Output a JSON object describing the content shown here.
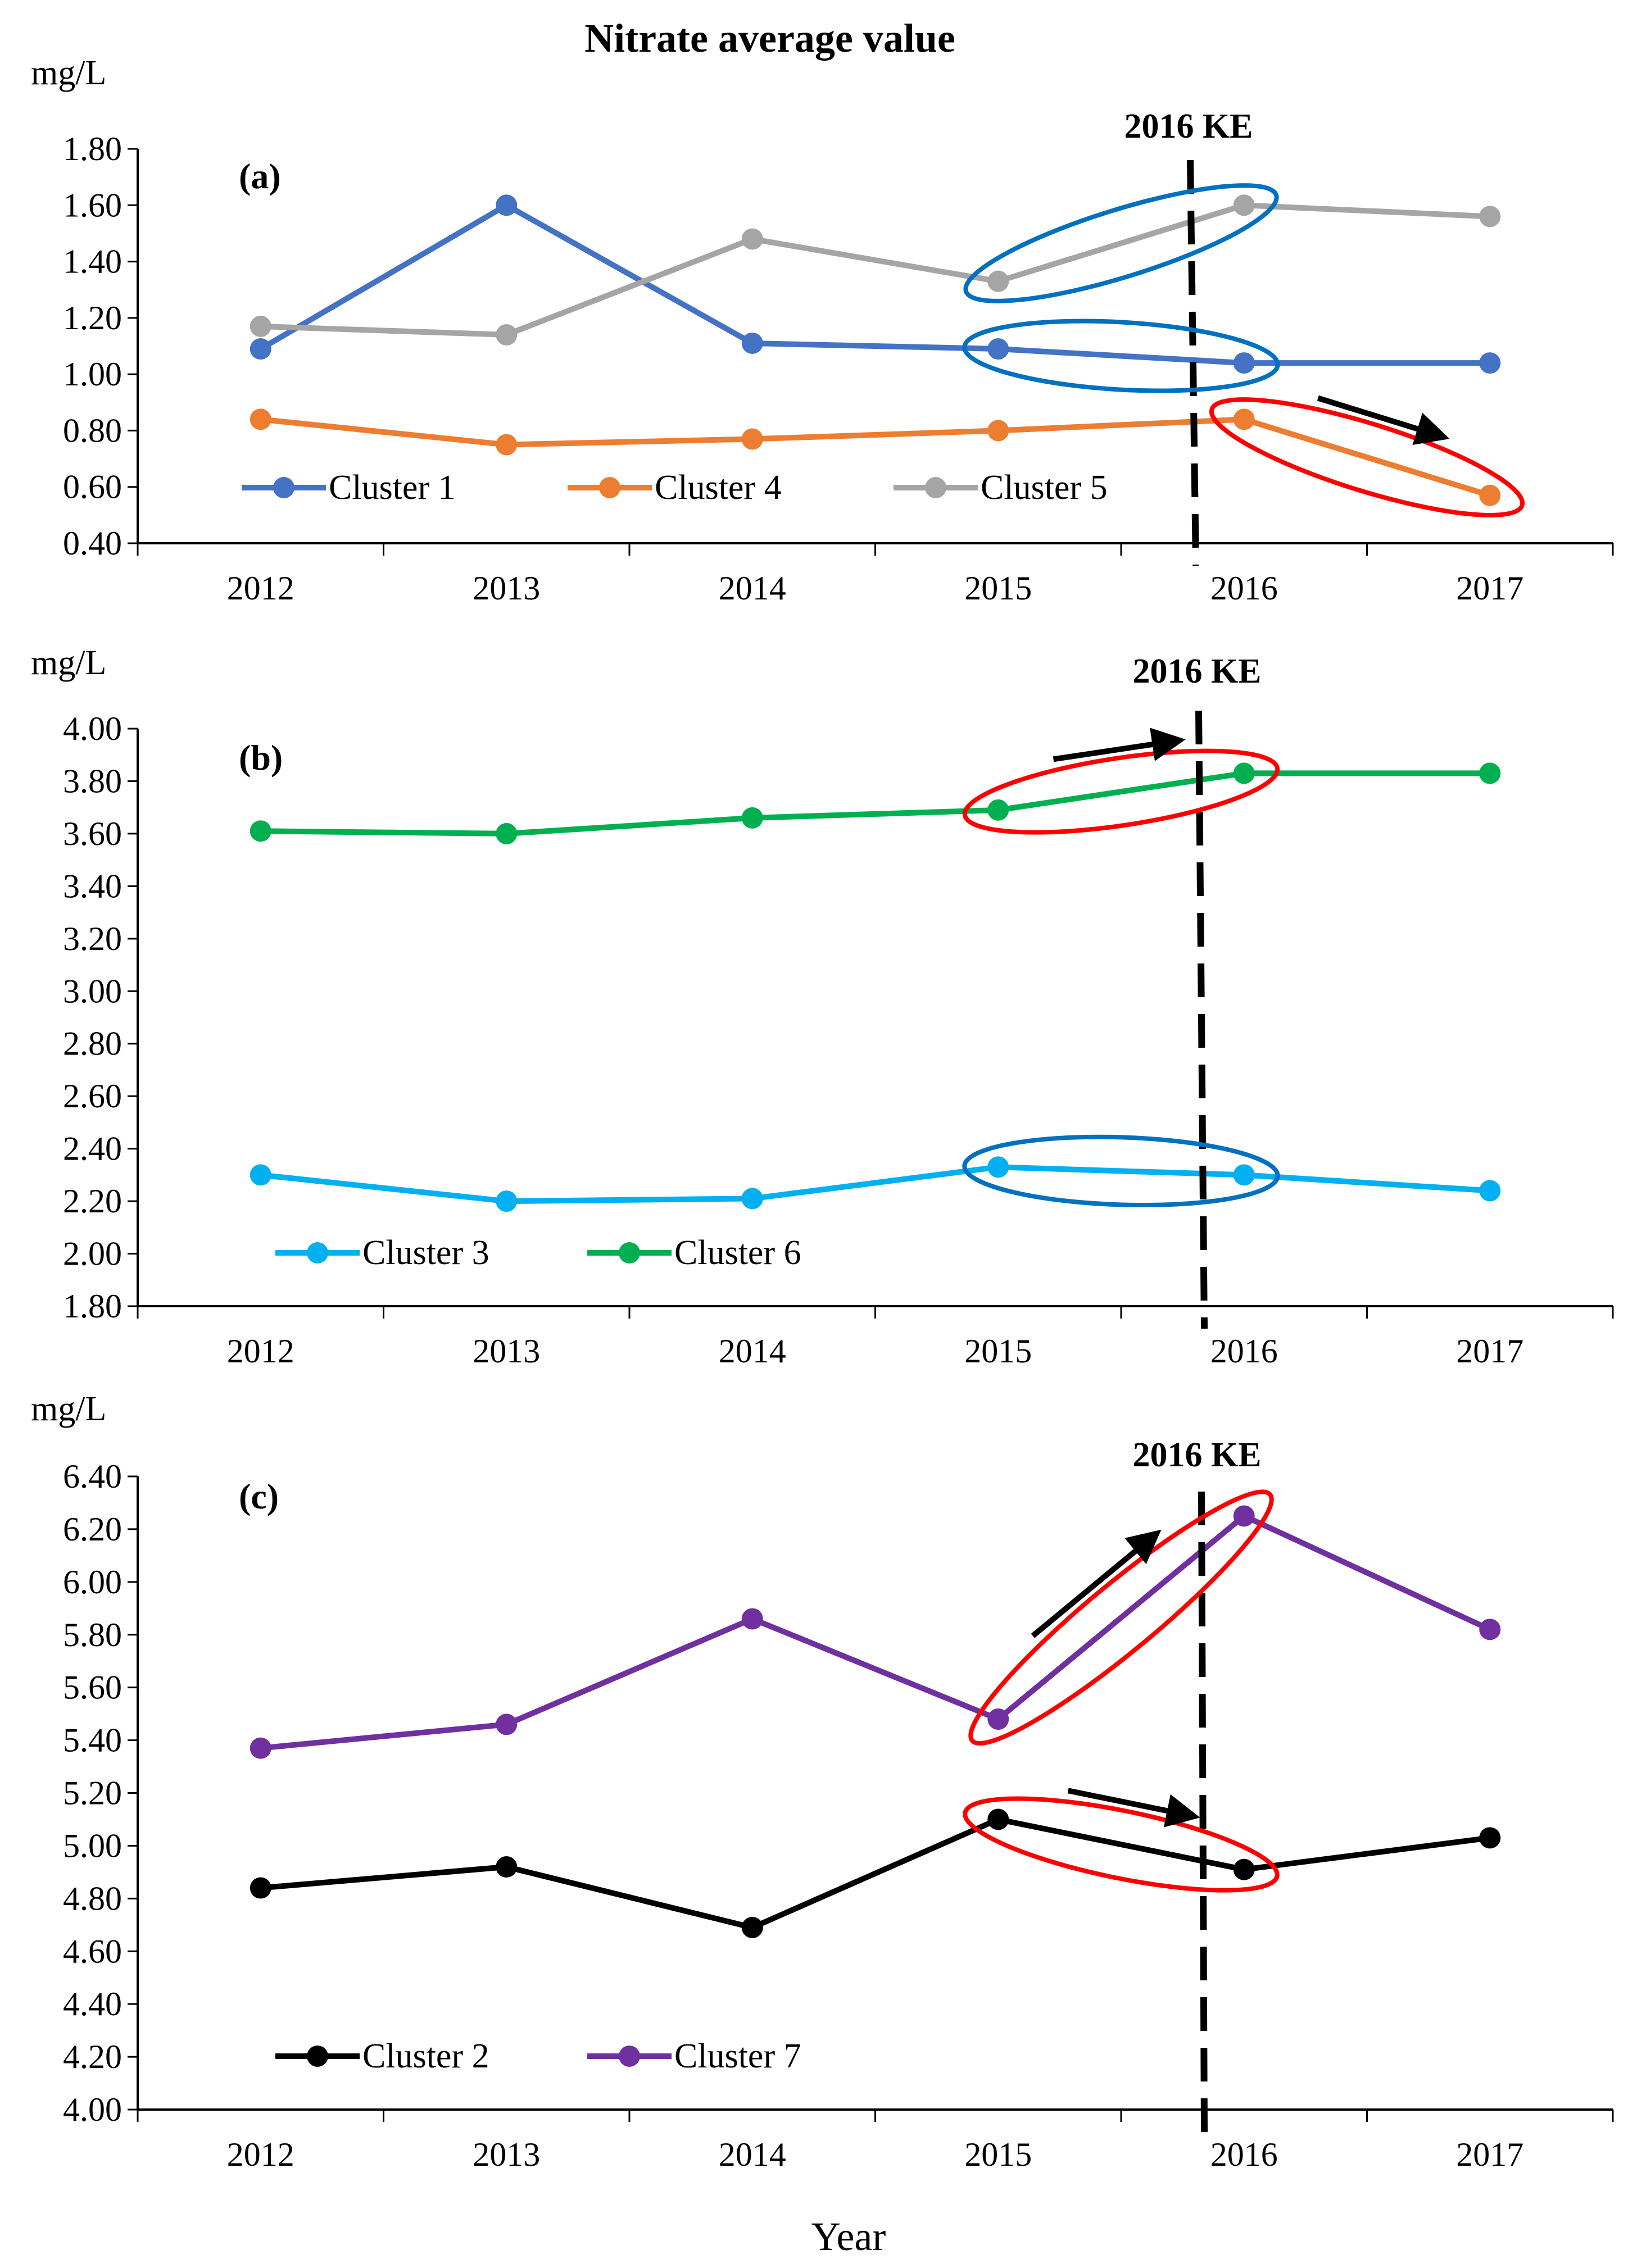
{
  "chart_data": [
    {
      "type": "line",
      "panel": "(a)",
      "title": "Nitrate average value",
      "ylabel": "mg/L",
      "xlabel": "",
      "categories": [
        "2012",
        "2013",
        "2014",
        "2015",
        "2016",
        "2017"
      ],
      "ylim": [
        0.4,
        1.8
      ],
      "ystep": 0.2,
      "ytick_labels": [
        "0.40",
        "0.60",
        "0.80",
        "1.00",
        "1.20",
        "1.40",
        "1.60",
        "1.80"
      ],
      "marker_label": "2016 KE",
      "legend_position": "bottom-left",
      "series": [
        {
          "name": "Cluster 1",
          "color": "#4472C4",
          "values": [
            1.09,
            1.6,
            1.11,
            1.09,
            1.04,
            1.04
          ]
        },
        {
          "name": "Cluster 4",
          "color": "#ED7D31",
          "values": [
            0.84,
            0.75,
            0.77,
            0.8,
            0.84,
            0.57
          ]
        },
        {
          "name": "Cluster 5",
          "color": "#A5A5A5",
          "values": [
            1.17,
            1.14,
            1.48,
            1.33,
            1.6,
            1.56
          ]
        }
      ]
    },
    {
      "type": "line",
      "panel": "(b)",
      "ylabel": "mg/L",
      "xlabel": "",
      "categories": [
        "2012",
        "2013",
        "2014",
        "2015",
        "2016",
        "2017"
      ],
      "ylim": [
        1.8,
        4.0
      ],
      "ystep": 0.2,
      "ytick_labels": [
        "1.80",
        "2.00",
        "2.20",
        "2.40",
        "2.60",
        "2.80",
        "3.00",
        "3.20",
        "3.40",
        "3.60",
        "3.80",
        "4.00"
      ],
      "marker_label": "2016 KE",
      "legend_position": "bottom-left",
      "series": [
        {
          "name": "Cluster 3",
          "color": "#00B0F0",
          "values": [
            2.3,
            2.2,
            2.21,
            2.33,
            2.3,
            2.24
          ]
        },
        {
          "name": "Cluster 6",
          "color": "#00B050",
          "values": [
            3.61,
            3.6,
            3.66,
            3.69,
            3.83,
            3.83
          ]
        }
      ]
    },
    {
      "type": "line",
      "panel": "(c)",
      "ylabel": "mg/L",
      "xlabel": "Year",
      "categories": [
        "2012",
        "2013",
        "2014",
        "2015",
        "2016",
        "2017"
      ],
      "ylim": [
        4.0,
        6.4
      ],
      "ystep": 0.2,
      "ytick_labels": [
        "4.00",
        "4.20",
        "4.40",
        "4.60",
        "4.80",
        "5.00",
        "5.20",
        "5.40",
        "5.60",
        "5.80",
        "6.00",
        "6.20",
        "6.40"
      ],
      "marker_label": "2016 KE",
      "legend_position": "bottom-left",
      "series": [
        {
          "name": "Cluster 2",
          "color": "#000000",
          "values": [
            4.84,
            4.92,
            4.69,
            5.1,
            4.91,
            5.03
          ]
        },
        {
          "name": "Cluster 7",
          "color": "#7030A0",
          "values": [
            5.37,
            5.46,
            5.86,
            5.48,
            6.25,
            5.82
          ]
        }
      ]
    }
  ]
}
